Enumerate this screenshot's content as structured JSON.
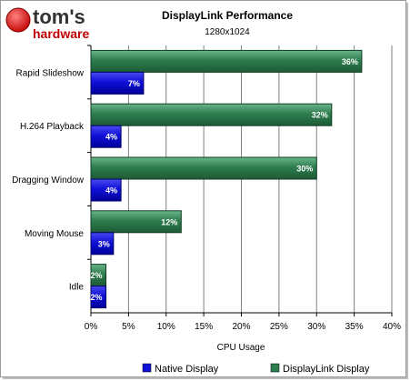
{
  "logo": {
    "brand_line1": "tom's",
    "brand_line2": "hardware"
  },
  "chart_data": {
    "type": "bar",
    "orientation": "horizontal",
    "title": "DisplayLink Performance",
    "subtitle": "1280x1024",
    "xlabel": "CPU Usage",
    "ylabel": "",
    "xlim": [
      0,
      40
    ],
    "x_ticks": [
      "0%",
      "5%",
      "10%",
      "15%",
      "20%",
      "25%",
      "30%",
      "35%",
      "40%"
    ],
    "categories": [
      "Rapid Slideshow",
      "H.264 Playback",
      "Dragging Window",
      "Moving Mouse",
      "Idle"
    ],
    "series": [
      {
        "name": "Native Display",
        "color": "#1010d8",
        "values": [
          7,
          4,
          4,
          3,
          2
        ],
        "labels": [
          "7%",
          "4%",
          "4%",
          "3%",
          "2%"
        ]
      },
      {
        "name": "DisplayLink Display",
        "color": "#2e7d4f",
        "values": [
          36,
          32,
          30,
          12,
          2
        ],
        "labels": [
          "36%",
          "32%",
          "30%",
          "12%",
          "2%"
        ]
      }
    ],
    "grid": true,
    "legend_position": "bottom"
  }
}
